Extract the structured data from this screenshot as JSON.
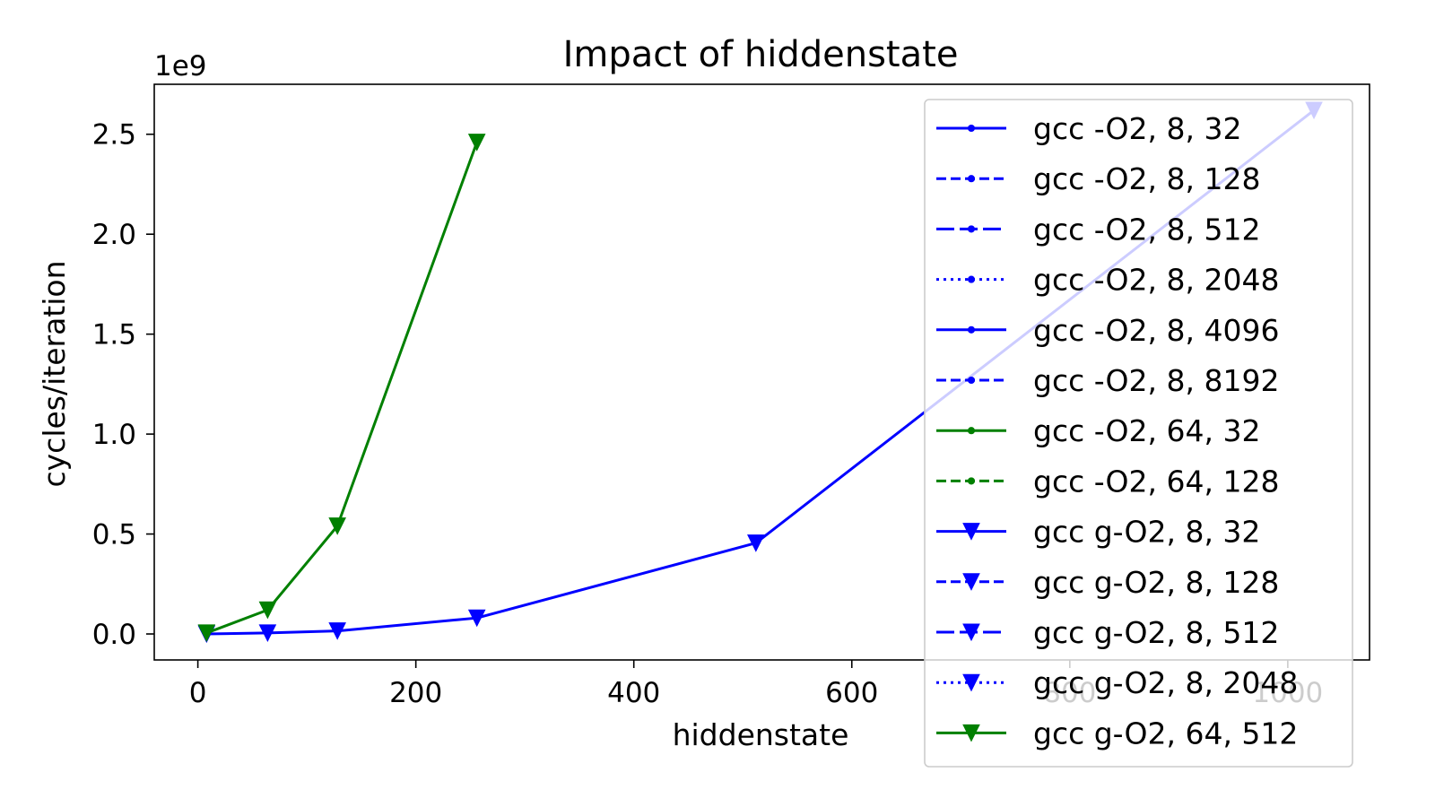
{
  "chart_data": {
    "type": "line",
    "title": "Impact of hiddenstate",
    "xlabel": "hiddenstate",
    "ylabel": "cycles/iteration",
    "y_offset_label": "1e9",
    "xlim": [
      -40,
      1075
    ],
    "ylim": [
      -0.13,
      2.75
    ],
    "x_ticks": [
      0,
      200,
      400,
      600,
      800,
      1000
    ],
    "x_tick_labels": [
      "0",
      "200",
      "400",
      "600",
      "800",
      "1000"
    ],
    "y_ticks": [
      0.0,
      0.5,
      1.0,
      1.5,
      2.0,
      2.5
    ],
    "y_tick_labels": [
      "0.0",
      "0.5",
      "1.0",
      "1.5",
      "2.0",
      "2.5"
    ],
    "grid": false,
    "legend_position": "right",
    "series": [
      {
        "name": "gcc -O2, 8, 32",
        "color": "#0000ff",
        "dash": "solid",
        "marker": "dot",
        "x": [],
        "y": []
      },
      {
        "name": "gcc -O2, 8, 128",
        "color": "#0000ff",
        "dash": "dashed",
        "marker": "dot",
        "x": [],
        "y": []
      },
      {
        "name": "gcc -O2, 8, 512",
        "color": "#0000ff",
        "dash": "longdash",
        "marker": "dot",
        "x": [],
        "y": []
      },
      {
        "name": "gcc -O2, 8, 2048",
        "color": "#0000ff",
        "dash": "dotted",
        "marker": "dot",
        "x": [],
        "y": []
      },
      {
        "name": "gcc -O2, 8, 4096",
        "color": "#0000ff",
        "dash": "solid",
        "marker": "dot",
        "x": [],
        "y": []
      },
      {
        "name": "gcc -O2, 8, 8192",
        "color": "#0000ff",
        "dash": "dashed",
        "marker": "dot",
        "x": [],
        "y": []
      },
      {
        "name": "gcc -O2, 64, 32",
        "color": "#008000",
        "dash": "solid",
        "marker": "dot",
        "x": [],
        "y": []
      },
      {
        "name": "gcc -O2, 64, 128",
        "color": "#008000",
        "dash": "dashed",
        "marker": "dot",
        "x": [],
        "y": []
      },
      {
        "name": "gcc g-O2, 8, 32",
        "color": "#0000ff",
        "dash": "solid",
        "marker": "triangle-down",
        "x": [
          8,
          64,
          128,
          256,
          512,
          1024
        ],
        "y": [
          0.0,
          0.005,
          0.015,
          0.08,
          0.455,
          2.62
        ]
      },
      {
        "name": "gcc g-O2, 8, 128",
        "color": "#0000ff",
        "dash": "dashed",
        "marker": "triangle-down",
        "x": [],
        "y": []
      },
      {
        "name": "gcc g-O2, 8, 512",
        "color": "#0000ff",
        "dash": "longdash",
        "marker": "triangle-down",
        "x": [],
        "y": []
      },
      {
        "name": "gcc g-O2, 8, 2048",
        "color": "#0000ff",
        "dash": "dotted",
        "marker": "triangle-down",
        "x": [],
        "y": []
      },
      {
        "name": "gcc g-O2, 64, 512",
        "color": "#008000",
        "dash": "solid",
        "marker": "triangle-down",
        "x": [
          8,
          64,
          128,
          256
        ],
        "y": [
          0.005,
          0.12,
          0.54,
          2.46
        ]
      }
    ]
  }
}
